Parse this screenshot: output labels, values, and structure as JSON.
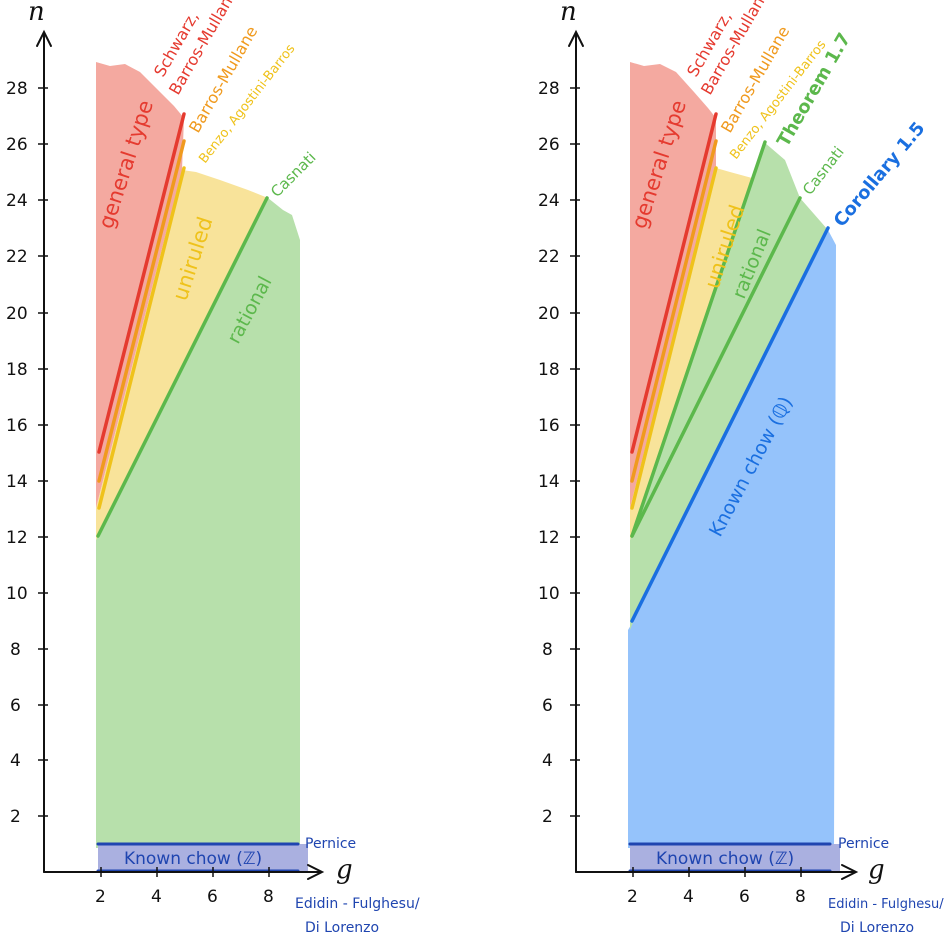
{
  "colors": {
    "general": "#f4a9a0",
    "uniruled": "#f8e39a",
    "rational": "#b7e0ab",
    "known_q": "#95c3fb",
    "known_z": "#aab0e0",
    "red": "#e53a2f",
    "orange": "#f09a1e",
    "yellow": "#efc21b",
    "green": "#5cb84c",
    "blue": "#1a6fe0",
    "navy": "#1f45b0",
    "axis": "#111111"
  },
  "axes": {
    "x_label": "g",
    "y_label": "n",
    "x_ticks": [
      "2",
      "4",
      "6",
      "8"
    ],
    "y_ticks": [
      "2",
      "4",
      "6",
      "8",
      "10",
      "12",
      "14",
      "16",
      "18",
      "20",
      "22",
      "24",
      "26",
      "28"
    ]
  },
  "left_panel": {
    "labels": {
      "schwarz_line1": "Schwarz,",
      "schwarz_line2": "Barros-Mullane",
      "barros_mullane": "Barros-Mullane",
      "benzo": "Benzo, Agostini-Barros",
      "casnati": "Casnati",
      "pernice": "Pernice",
      "edidin_line1": "Edidin - Fulghesu/",
      "edidin_line2": "Di Lorenzo",
      "known_chow_z": "Known chow (ℤ)"
    },
    "regions": {
      "general_type": "general type",
      "uniruled": "uniruled",
      "rational": "rational"
    }
  },
  "right_panel": {
    "labels": {
      "schwarz_line1": "Schwarz,",
      "schwarz_line2": "Barros-Mullane",
      "barros_mullane": "Barros-Mullane",
      "benzo": "Benzo, Agostini-Barros",
      "theorem": "Theorem 1.7",
      "casnati": "Casnati",
      "corollary": "Corollary 1.5",
      "pernice": "Pernice",
      "edidin_line1": "Edidin - Fulghesu/",
      "edidin_line2": "Di Lorenzo",
      "known_chow_z": "Known chow (ℤ)"
    },
    "regions": {
      "general_type": "general type",
      "uniruled": "uniruled",
      "rational": "rational",
      "known_chow_q": "Known chow (ℚ)"
    }
  }
}
